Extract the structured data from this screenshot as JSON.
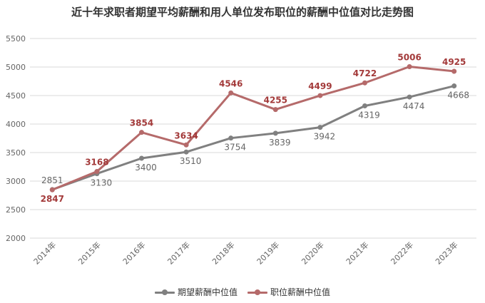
{
  "chart_data": {
    "type": "line",
    "title": "近十年求职者期望平均薪酬和用人单位发布职位的薪酬中位值对比走势图",
    "categories": [
      "2014年",
      "2015年",
      "2016年",
      "2017年",
      "2018年",
      "2019年",
      "2020年",
      "2021年",
      "2022年",
      "2023年"
    ],
    "ylim": [
      2000,
      5500
    ],
    "yticks": [
      2000,
      2500,
      3000,
      3500,
      4000,
      4500,
      5000,
      5500
    ],
    "grid": true,
    "legend_position": "bottom",
    "series": [
      {
        "name": "期望薪酬中位值",
        "color": "#808080",
        "values": [
          2851,
          3130,
          3400,
          3510,
          3754,
          3839,
          3942,
          4319,
          4474,
          4668
        ]
      },
      {
        "name": "职位薪酬中位值",
        "color": "#b56a6a",
        "values": [
          2847,
          3168,
          3854,
          3634,
          4546,
          4255,
          4499,
          4722,
          5006,
          4925
        ]
      }
    ]
  }
}
